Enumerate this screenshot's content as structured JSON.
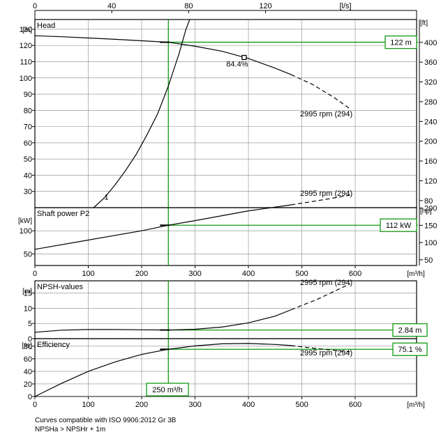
{
  "chart_data": {
    "type": "line",
    "common_x": {
      "unit": "[m³/h]",
      "min": 0,
      "max": 715,
      "ticks": [
        0,
        100,
        200,
        300,
        400,
        500,
        600
      ],
      "top_unit": "[l/s]",
      "top_ticks": [
        0,
        40,
        80,
        120
      ],
      "top_factor": 3.6
    },
    "duty_point": {
      "x": 250,
      "label": "250 m³/h"
    },
    "panels": [
      {
        "key": "head",
        "title": "Head",
        "left_unit": "[m]",
        "right_unit": "[ft]",
        "ylim": [
          20,
          136
        ],
        "left_ticks": [
          30,
          40,
          50,
          60,
          70,
          80,
          90,
          100,
          110,
          120,
          130
        ],
        "right_ticks": [
          80,
          120,
          160,
          200,
          240,
          280,
          320,
          360,
          400
        ],
        "right_factor": 3.2808,
        "series": [
          {
            "name": "2995 rpm (294)",
            "solid": [
              [
                0,
                126
              ],
              [
                50,
                125.4
              ],
              [
                100,
                124.6
              ],
              [
                150,
                123.8
              ],
              [
                200,
                122.9
              ],
              [
                250,
                122
              ],
              [
                300,
                119.5
              ],
              [
                350,
                116.5
              ],
              [
                400,
                112
              ],
              [
                450,
                106
              ],
              [
                480,
                102
              ]
            ],
            "dashed": [
              [
                480,
                102
              ],
              [
                520,
                96
              ],
              [
                560,
                88
              ],
              [
                590,
                81
              ]
            ]
          },
          {
            "name": "1",
            "solid": [
              [
                110,
                20
              ],
              [
                130,
                26
              ],
              [
                150,
                34
              ],
              [
                170,
                43
              ],
              [
                190,
                53
              ],
              [
                210,
                65
              ],
              [
                230,
                78
              ],
              [
                250,
                95
              ],
              [
                270,
                115
              ],
              [
                283,
                130
              ],
              [
                290,
                136
              ]
            ]
          }
        ],
        "marker": {
          "x": 392,
          "y": 112.6,
          "label": "84.4%"
        },
        "value_box": "122 m",
        "duty_y": 122,
        "curve_label": "2995 rpm (294)",
        "curve_label_at": [
          595,
          78
        ],
        "series_label": "1",
        "series_label_at": [
          130,
          25
        ]
      },
      {
        "key": "power",
        "title": "Shaft power P2",
        "left_unit": "[kW]",
        "right_unit": "[hp]",
        "ylim": [
          25,
          150
        ],
        "left_ticks": [
          50,
          100
        ],
        "right_ticks": [
          50,
          100,
          150,
          200
        ],
        "right_factor": 1.341,
        "series": [
          {
            "name": "2995 rpm (294)",
            "solid": [
              [
                0,
                60
              ],
              [
                100,
                80
              ],
              [
                200,
                100
              ],
              [
                250,
                112
              ],
              [
                300,
                122
              ],
              [
                400,
                143
              ],
              [
                480,
                156
              ]
            ],
            "dashed": [
              [
                480,
                156
              ],
              [
                540,
                167
              ],
              [
                590,
                177
              ]
            ]
          }
        ],
        "value_box": "112 kW",
        "duty_y": 112,
        "curve_label": "2995 rpm (294)",
        "curve_label_at": [
          595,
          182
        ]
      },
      {
        "key": "npsh",
        "title": "NPSH-values",
        "left_unit": "[m]",
        "ylim": [
          0,
          19
        ],
        "left_ticks": [
          0,
          5,
          10,
          15
        ],
        "series": [
          {
            "name": "2995 rpm (294)",
            "solid": [
              [
                0,
                2.1
              ],
              [
                50,
                2.8
              ],
              [
                100,
                3.0
              ],
              [
                150,
                3.0
              ],
              [
                200,
                2.9
              ],
              [
                250,
                2.84
              ],
              [
                300,
                3.1
              ],
              [
                350,
                3.8
              ],
              [
                400,
                5.2
              ],
              [
                450,
                7.4
              ],
              [
                480,
                9.5
              ]
            ],
            "dashed": [
              [
                480,
                9.5
              ],
              [
                530,
                13
              ],
              [
                590,
                18
              ]
            ]
          }
        ],
        "value_box": "2.84 m",
        "duty_y": 2.84,
        "curve_label": "2995 rpm (294)",
        "curve_label_at": [
          595,
          18.5
        ]
      },
      {
        "key": "efficiency",
        "title": "Efficiency",
        "left_unit": "[%]",
        "ylim": [
          0,
          92
        ],
        "left_ticks": [
          0,
          20,
          40,
          60,
          80
        ],
        "series": [
          {
            "name": "2995 rpm (294)",
            "solid": [
              [
                0,
                0
              ],
              [
                50,
                21
              ],
              [
                100,
                40
              ],
              [
                150,
                55
              ],
              [
                200,
                67
              ],
              [
                250,
                75.1
              ],
              [
                300,
                80.5
              ],
              [
                350,
                83.8
              ],
              [
                400,
                84.3
              ],
              [
                450,
                82.8
              ],
              [
                480,
                81
              ]
            ],
            "dashed": [
              [
                480,
                81
              ],
              [
                530,
                76
              ],
              [
                590,
                71
              ]
            ]
          }
        ],
        "value_box": "75.1 %",
        "duty_y": 75.1,
        "curve_label": "2995 rpm (294)",
        "curve_label_at": [
          595,
          70
        ]
      }
    ],
    "notes": [
      "Curves compatible with ISO 9906:2012 Gr 3B",
      "NPSHa > NPSHr + 1m"
    ],
    "colors": {
      "duty_line": "#119911",
      "curve": "#000000",
      "grid": "#888888",
      "frame": "#000000"
    }
  }
}
